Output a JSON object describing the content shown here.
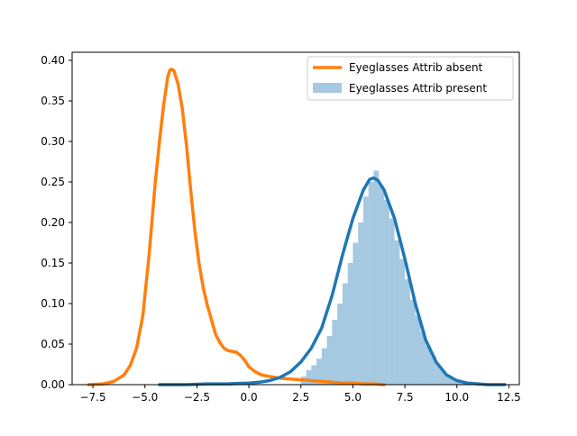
{
  "chart_data": {
    "type": "area",
    "title": "",
    "xlabel": "",
    "ylabel": "",
    "xlim": [
      -8.5,
      13.0
    ],
    "ylim": [
      0.0,
      0.41
    ],
    "x_ticks": [
      -7.5,
      -5.0,
      -2.5,
      0.0,
      2.5,
      5.0,
      7.5,
      10.0,
      12.5
    ],
    "x_tick_labels": [
      "−7.5",
      "−5.0",
      "−2.5",
      "0.0",
      "2.5",
      "5.0",
      "7.5",
      "10.0",
      "12.5"
    ],
    "y_ticks": [
      0.0,
      0.05,
      0.1,
      0.15,
      0.2,
      0.25,
      0.3,
      0.35,
      0.4
    ],
    "y_tick_labels": [
      "0.00",
      "0.05",
      "0.10",
      "0.15",
      "0.20",
      "0.25",
      "0.30",
      "0.35",
      "0.40"
    ],
    "grid": false,
    "legend_position": "top-right",
    "colors": {
      "absent": "#ff7f0e",
      "present_kde": "#1f77b4",
      "present_hist": "#1f77b4"
    },
    "legend": [
      {
        "label": "Eyeglasses Attrib absent",
        "kind": "line"
      },
      {
        "label": "Eyeglasses Attrib present",
        "kind": "patch"
      }
    ],
    "series": [
      {
        "name": "Eyeglasses Attrib absent",
        "kind": "kde",
        "x": [
          -7.7,
          -7.0,
          -6.5,
          -6.0,
          -5.7,
          -5.4,
          -5.1,
          -4.8,
          -4.5,
          -4.3,
          -4.1,
          -3.9,
          -3.8,
          -3.7,
          -3.6,
          -3.4,
          -3.2,
          -3.0,
          -2.8,
          -2.6,
          -2.4,
          -2.2,
          -2.0,
          -1.8,
          -1.6,
          -1.4,
          -1.2,
          -1.0,
          -0.8,
          -0.6,
          -0.4,
          -0.2,
          0.0,
          0.3,
          0.6,
          1.0,
          1.5,
          2.0,
          2.5,
          3.0,
          3.5,
          4.0,
          4.5,
          5.0,
          5.5,
          6.0,
          6.5
        ],
        "y": [
          0.0,
          0.001,
          0.004,
          0.012,
          0.024,
          0.045,
          0.085,
          0.16,
          0.25,
          0.3,
          0.345,
          0.38,
          0.388,
          0.389,
          0.387,
          0.37,
          0.34,
          0.295,
          0.24,
          0.19,
          0.15,
          0.12,
          0.098,
          0.08,
          0.062,
          0.052,
          0.045,
          0.042,
          0.041,
          0.04,
          0.036,
          0.03,
          0.022,
          0.016,
          0.012,
          0.01,
          0.008,
          0.007,
          0.006,
          0.005,
          0.004,
          0.003,
          0.002,
          0.002,
          0.001,
          0.001,
          0.0
        ]
      },
      {
        "name": "Eyeglasses Attrib present",
        "kind": "kde",
        "x": [
          -4.3,
          -3.0,
          -2.0,
          -1.0,
          0.0,
          0.5,
          1.0,
          1.5,
          2.0,
          2.5,
          3.0,
          3.5,
          4.0,
          4.5,
          5.0,
          5.5,
          5.8,
          6.0,
          6.2,
          6.5,
          7.0,
          7.5,
          8.0,
          8.5,
          9.0,
          9.5,
          10.0,
          10.5,
          11.0,
          11.5,
          12.0,
          12.3
        ],
        "y": [
          0.0,
          0.0,
          0.001,
          0.001,
          0.002,
          0.003,
          0.005,
          0.009,
          0.016,
          0.028,
          0.045,
          0.07,
          0.11,
          0.16,
          0.205,
          0.24,
          0.253,
          0.255,
          0.252,
          0.24,
          0.205,
          0.155,
          0.1,
          0.055,
          0.028,
          0.012,
          0.005,
          0.002,
          0.001,
          0.0,
          0.0,
          0.0
        ]
      },
      {
        "name": "Eyeglasses Attrib present",
        "kind": "histogram",
        "bin_width": 0.25,
        "bins": [
          [
            2.5,
            0.01
          ],
          [
            2.75,
            0.018
          ],
          [
            3.0,
            0.024
          ],
          [
            3.25,
            0.032
          ],
          [
            3.5,
            0.045
          ],
          [
            3.75,
            0.06
          ],
          [
            4.0,
            0.08
          ],
          [
            4.25,
            0.1
          ],
          [
            4.5,
            0.125
          ],
          [
            4.75,
            0.15
          ],
          [
            5.0,
            0.175
          ],
          [
            5.25,
            0.2
          ],
          [
            5.5,
            0.232
          ],
          [
            5.75,
            0.25
          ],
          [
            6.0,
            0.264
          ],
          [
            6.25,
            0.245
          ],
          [
            6.5,
            0.228
          ],
          [
            6.75,
            0.205
          ],
          [
            7.0,
            0.178
          ],
          [
            7.25,
            0.155
          ],
          [
            7.5,
            0.13
          ],
          [
            7.75,
            0.105
          ],
          [
            8.0,
            0.085
          ],
          [
            8.25,
            0.065
          ],
          [
            8.5,
            0.048
          ],
          [
            8.75,
            0.035
          ],
          [
            9.0,
            0.024
          ],
          [
            9.25,
            0.016
          ],
          [
            9.5,
            0.01
          ],
          [
            9.75,
            0.006
          ],
          [
            10.0,
            0.003
          ],
          [
            10.25,
            0.002
          ]
        ]
      }
    ]
  }
}
